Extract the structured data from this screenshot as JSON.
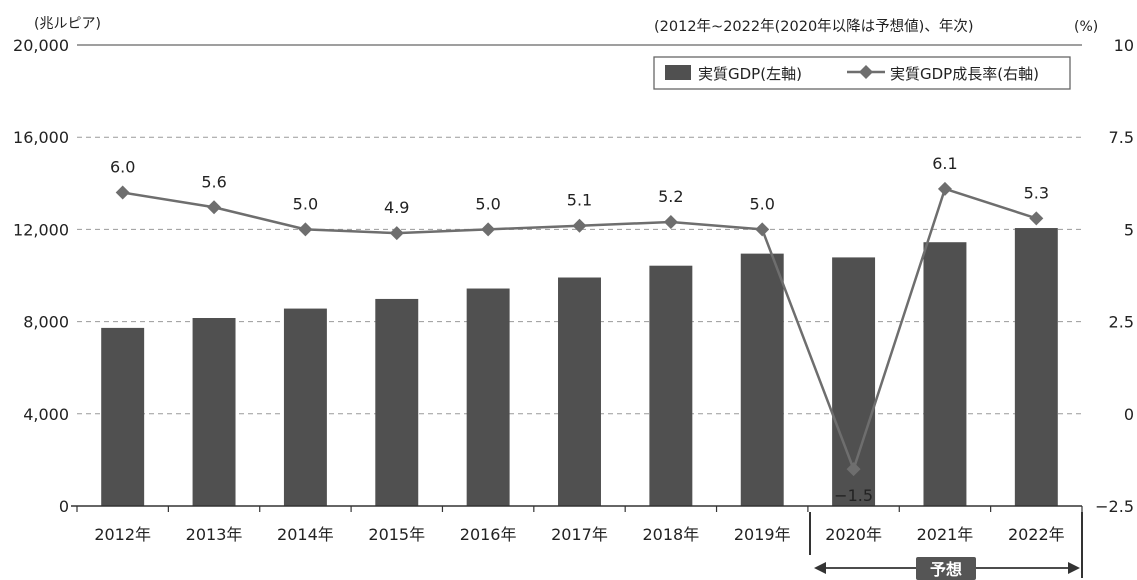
{
  "chart_data": {
    "type": "bar+line",
    "left_unit": "(兆ルピア)",
    "right_unit": "(%)",
    "note": "(2012年~2022年(2020年以降は予想値)、年次)",
    "forecast_label": "予想",
    "categories": [
      "2012年",
      "2013年",
      "2014年",
      "2015年",
      "2016年",
      "2017年",
      "2018年",
      "2019年",
      "2020年",
      "2021年",
      "2022年"
    ],
    "y_left": {
      "min": 0,
      "max": 20000,
      "ticks": [
        "0",
        "4,000",
        "8,000",
        "12,000",
        "16,000",
        "20,000"
      ]
    },
    "y_right": {
      "min": -2.5,
      "max": 10,
      "ticks": [
        "−2.5",
        "0",
        "2.5",
        "5",
        "7.5",
        "10"
      ]
    },
    "series": [
      {
        "name": "実質GDP(左軸)",
        "type": "bar",
        "axis": "left",
        "color": "#505050",
        "values": [
          7727,
          8156,
          8565,
          8983,
          9435,
          9913,
          10425,
          10949,
          10785,
          11444,
          12059
        ]
      },
      {
        "name": "実質GDP成長率(右軸)",
        "type": "line",
        "axis": "right",
        "color": "#6e6e6e",
        "values": [
          6.0,
          5.6,
          5.0,
          4.9,
          5.0,
          5.1,
          5.2,
          5.0,
          -1.5,
          6.1,
          5.3
        ],
        "labels": [
          "6.0",
          "5.6",
          "5.0",
          "4.9",
          "5.0",
          "5.1",
          "5.2",
          "5.0",
          "−1.5",
          "6.1",
          "5.3"
        ]
      }
    ],
    "grid": "dashed horizontal",
    "legend_position": "top-right",
    "forecast_from_index": 8
  }
}
